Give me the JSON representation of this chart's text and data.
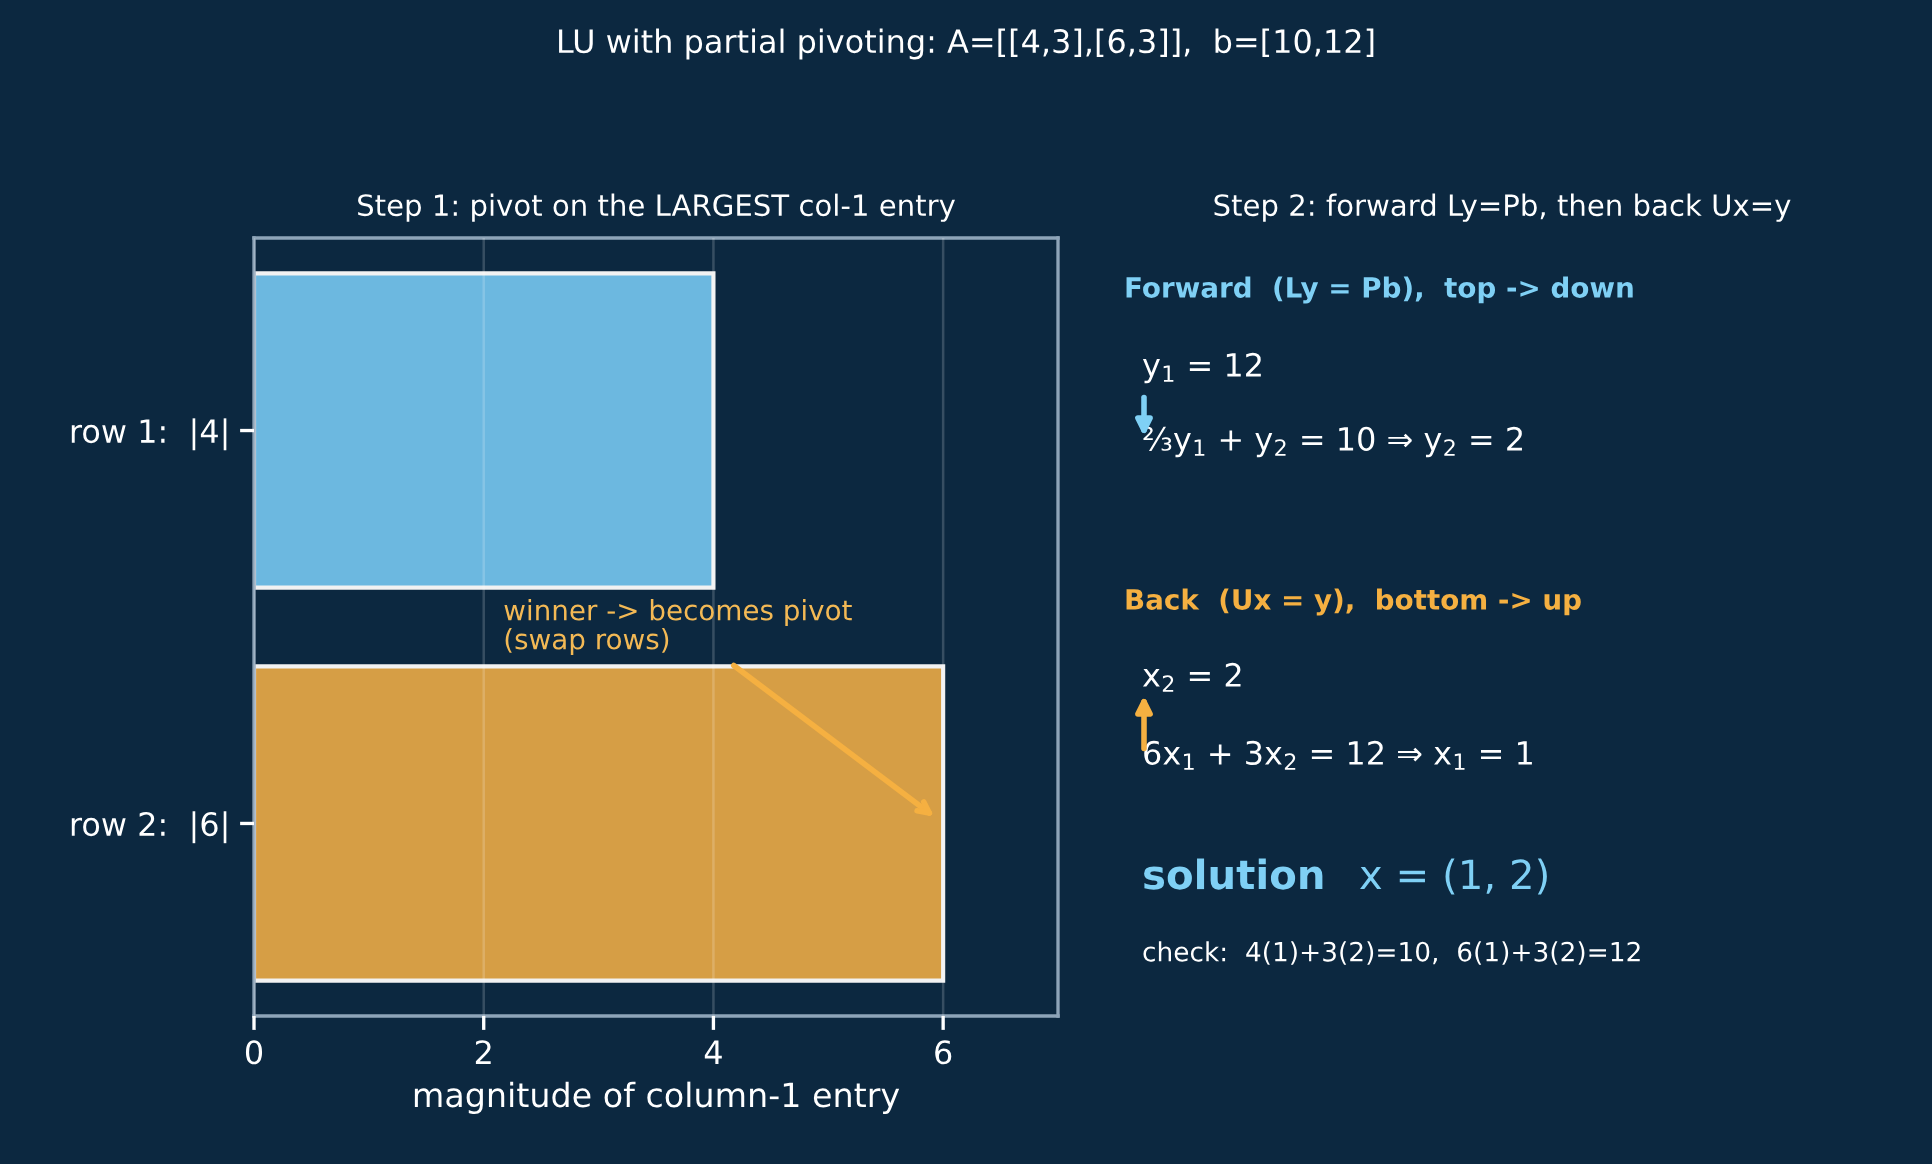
{
  "chart_data": [
    {
      "type": "bar",
      "orientation": "horizontal",
      "title": "LU with partial pivoting: A=[[4,3],[6,3]],  b=[10,12]",
      "subtitle": "Step 1: pivot on the LARGEST col-1 entry",
      "xlabel": "magnitude of column-1 entry",
      "categories": [
        "row 1:  |4|",
        "row 2:  |6|"
      ],
      "values": [
        4,
        6
      ],
      "colors": [
        "#6cb8e0",
        "#d69e45"
      ],
      "xlim": [
        0,
        7
      ],
      "xticks": [
        0,
        2,
        4,
        6
      ],
      "grid": "x",
      "annotations": [
        {
          "text": "winner -> becomes pivot\n(swap rows)",
          "x": 6,
          "y": "row 2:  |6|"
        }
      ]
    },
    {
      "type": "other",
      "title": "Step 2: forward Ly=Pb, then back Ux=y",
      "annotations": [
        "Forward  (Ly = Pb),  top -> down",
        "y$_{1}$ = 12",
        "⅔y$_{1}$ + y$_{2}$ = 10 ⇒ y$_{2}$ = 2",
        "Back  (Ux = y),  bottom -> up",
        "x$_{2}$ = 2",
        "6x$_{1}$ + 3x$_{2}$ = 12 ⇒ x$_{1}$ = 1",
        "solution",
        "x = (1, 2)",
        "check:  4(1)+3(2)=10,  6(1)+3(2)=12"
      ]
    }
  ]
}
